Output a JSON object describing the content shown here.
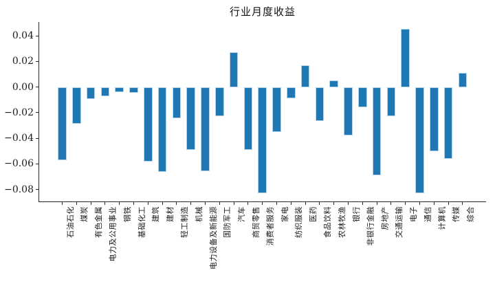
{
  "chart_data": {
    "type": "bar",
    "title": "行业月度收益",
    "xlabel": "",
    "ylabel": "",
    "grid": false,
    "legend": null,
    "tick_label_rotation_deg": 90,
    "bar_color": "#1f77b4",
    "axis_color": "#262626",
    "categories": [
      "石油石化",
      "煤炭",
      "有色金属",
      "电力及公用事业",
      "钢铁",
      "基础化工",
      "建筑",
      "建材",
      "轻工制造",
      "机械",
      "电力设备及新能源",
      "国防军工",
      "汽车",
      "商贸零售",
      "消费者服务",
      "家电",
      "纺织服装",
      "医药",
      "食品饮料",
      "农林牧渔",
      "银行",
      "非银行金融",
      "房地产",
      "交通运输",
      "电子",
      "通信",
      "计算机",
      "传媒",
      "综合"
    ],
    "values": [
      -0.057,
      -0.0285,
      -0.0095,
      -0.007,
      -0.004,
      -0.0045,
      -0.058,
      -0.0665,
      -0.0245,
      -0.049,
      -0.0655,
      -0.0225,
      0.0275,
      -0.049,
      -0.083,
      -0.035,
      -0.009,
      0.017,
      -0.0265,
      0.005,
      -0.038,
      -0.016,
      -0.069,
      -0.0225,
      0.0455,
      -0.083,
      -0.05,
      -0.056,
      0.011
    ],
    "yticks": [
      0.04,
      0.02,
      0.0,
      -0.02,
      -0.04,
      -0.06,
      -0.08
    ],
    "ylim": [
      -0.0894,
      0.0509
    ]
  }
}
